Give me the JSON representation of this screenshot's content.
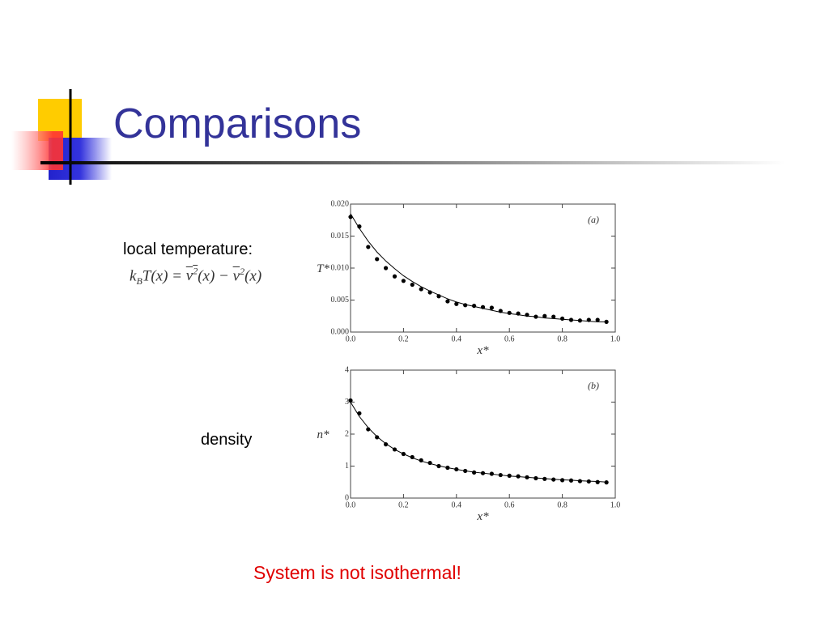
{
  "title": "Comparisons",
  "labels": {
    "temperature": "local temperature:",
    "density": "density",
    "conclusion": "System is not isothermal!"
  },
  "formula": [
    "k",
    "B",
    "T(x) = ",
    "v",
    "2",
    "(x)",
    " − ",
    "v",
    "2",
    "(x)"
  ],
  "chart_data": [
    {
      "type": "scatter",
      "annotation": "(a)",
      "xlabel": "x*",
      "ylabel": "T*",
      "xlim": [
        0,
        1
      ],
      "ylim": [
        0,
        0.02
      ],
      "xticks": [
        {
          "value": 0,
          "label": "0.0"
        },
        {
          "value": 0.2,
          "label": "0.2"
        },
        {
          "value": 0.4,
          "label": "0.4"
        },
        {
          "value": 0.6,
          "label": "0.6"
        },
        {
          "value": 0.8,
          "label": "0.8"
        },
        {
          "value": 1,
          "label": "1.0"
        }
      ],
      "yticks": [
        {
          "value": 0,
          "label": "0.000"
        },
        {
          "value": 0.005,
          "label": "0.005"
        },
        {
          "value": 0.01,
          "label": "0.010"
        },
        {
          "value": 0.015,
          "label": "0.015"
        },
        {
          "value": 0.02,
          "label": "0.020"
        }
      ],
      "x": [
        0,
        0.0333,
        0.0667,
        0.1,
        0.1333,
        0.1667,
        0.2,
        0.2333,
        0.2667,
        0.3,
        0.3333,
        0.3667,
        0.4,
        0.4333,
        0.4667,
        0.5,
        0.5333,
        0.5667,
        0.6,
        0.6333,
        0.6667,
        0.7,
        0.7333,
        0.7667,
        0.8,
        0.8333,
        0.8667,
        0.9,
        0.9333,
        0.9667
      ],
      "series": [
        {
          "color": "#000000",
          "style": "points",
          "values": [
            0.018,
            0.0165,
            0.0133,
            0.0114,
            0.01,
            0.0087,
            0.008,
            0.0074,
            0.0067,
            0.0062,
            0.0056,
            0.0048,
            0.0044,
            0.0042,
            0.0041,
            0.0039,
            0.0038,
            0.0033,
            0.003,
            0.0029,
            0.0027,
            0.0024,
            0.0025,
            0.0024,
            0.0021,
            0.0019,
            0.0018,
            0.0019,
            0.0019,
            0.0016
          ]
        },
        {
          "color": "#000000",
          "style": "line",
          "values": [
            0.0185,
            0.0162,
            0.0142,
            0.0125,
            0.0111,
            0.0099,
            0.0088,
            0.0079,
            0.0071,
            0.0064,
            0.0058,
            0.0052,
            0.0047,
            0.0043,
            0.004,
            0.0037,
            0.0034,
            0.0031,
            0.0029,
            0.0027,
            0.0025,
            0.0024,
            0.0022,
            0.0021,
            0.002,
            0.0019,
            0.0018,
            0.0017,
            0.0016,
            0.0016
          ]
        }
      ]
    },
    {
      "type": "scatter",
      "annotation": "(b)",
      "xlabel": "x*",
      "ylabel": "n*",
      "xlim": [
        0,
        1
      ],
      "ylim": [
        0,
        4
      ],
      "xticks": [
        {
          "value": 0,
          "label": "0.0"
        },
        {
          "value": 0.2,
          "label": "0.2"
        },
        {
          "value": 0.4,
          "label": "0.4"
        },
        {
          "value": 0.6,
          "label": "0.6"
        },
        {
          "value": 0.8,
          "label": "0.8"
        },
        {
          "value": 1,
          "label": "1.0"
        }
      ],
      "yticks": [
        0,
        1,
        2,
        3,
        4
      ],
      "x": [
        0,
        0.0333,
        0.0667,
        0.1,
        0.1333,
        0.1667,
        0.2,
        0.2333,
        0.2667,
        0.3,
        0.3333,
        0.3667,
        0.4,
        0.4333,
        0.4667,
        0.5,
        0.5333,
        0.5667,
        0.6,
        0.6333,
        0.6667,
        0.7,
        0.7333,
        0.7667,
        0.8,
        0.8333,
        0.8667,
        0.9,
        0.9333,
        0.9667
      ],
      "series": [
        {
          "color": "#000000",
          "style": "points",
          "values": [
            3.05,
            2.65,
            2.15,
            1.9,
            1.68,
            1.52,
            1.38,
            1.28,
            1.18,
            1.1,
            1.0,
            0.95,
            0.9,
            0.85,
            0.8,
            0.78,
            0.76,
            0.72,
            0.7,
            0.68,
            0.65,
            0.62,
            0.6,
            0.58,
            0.56,
            0.55,
            0.53,
            0.52,
            0.5,
            0.49
          ]
        },
        {
          "color": "#000000",
          "style": "line",
          "values": [
            3.0,
            2.55,
            2.2,
            1.92,
            1.7,
            1.52,
            1.38,
            1.26,
            1.16,
            1.08,
            1.01,
            0.95,
            0.9,
            0.85,
            0.81,
            0.78,
            0.75,
            0.72,
            0.69,
            0.67,
            0.65,
            0.63,
            0.61,
            0.59,
            0.57,
            0.56,
            0.54,
            0.53,
            0.52,
            0.5
          ]
        }
      ]
    }
  ]
}
